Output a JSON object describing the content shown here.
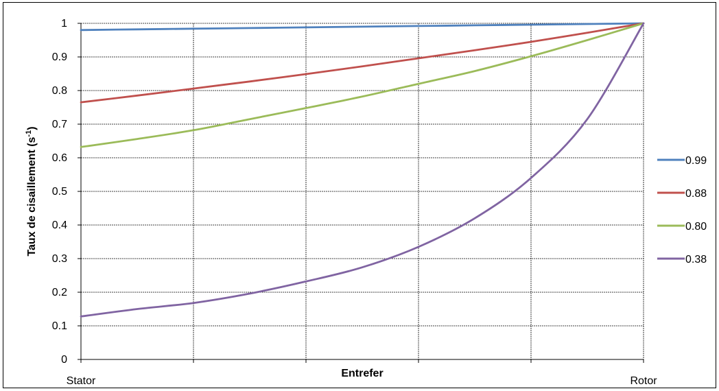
{
  "chart_data": {
    "type": "line",
    "xlabel": "Entrefer",
    "ylabel_main": "Taux de cisaillement (s",
    "ylabel_sup": "-1",
    "ylabel_close": ")",
    "x_tick_labels": {
      "start": "Stator",
      "end": "Rotor"
    },
    "x": [
      0,
      0.1,
      0.2,
      0.3,
      0.4,
      0.5,
      0.6,
      0.7,
      0.8,
      0.9,
      1.0
    ],
    "ylim": [
      0,
      1
    ],
    "y_ticks": [
      "0",
      "0.1",
      "0.2",
      "0.3",
      "0.4",
      "0.5",
      "0.6",
      "0.7",
      "0.8",
      "0.9",
      "1"
    ],
    "x_gridlines": 5,
    "grid": true,
    "legend_position": "right",
    "series": [
      {
        "name": "0.99",
        "color": "#4F81BD",
        "values": [
          0.98,
          0.982,
          0.984,
          0.986,
          0.988,
          0.99,
          0.992,
          0.994,
          0.996,
          0.998,
          1.0
        ]
      },
      {
        "name": "0.88",
        "color": "#C0504D",
        "values": [
          0.765,
          0.785,
          0.806,
          0.827,
          0.849,
          0.872,
          0.896,
          0.92,
          0.945,
          0.972,
          1.0
        ]
      },
      {
        "name": "0.80",
        "color": "#9BBB59",
        "values": [
          0.632,
          0.656,
          0.682,
          0.715,
          0.748,
          0.782,
          0.82,
          0.858,
          0.902,
          0.95,
          1.0
        ]
      },
      {
        "name": "0.38",
        "color": "#8064A2",
        "values": [
          0.128,
          0.15,
          0.168,
          0.196,
          0.232,
          0.274,
          0.335,
          0.42,
          0.54,
          0.715,
          1.0
        ]
      }
    ]
  }
}
